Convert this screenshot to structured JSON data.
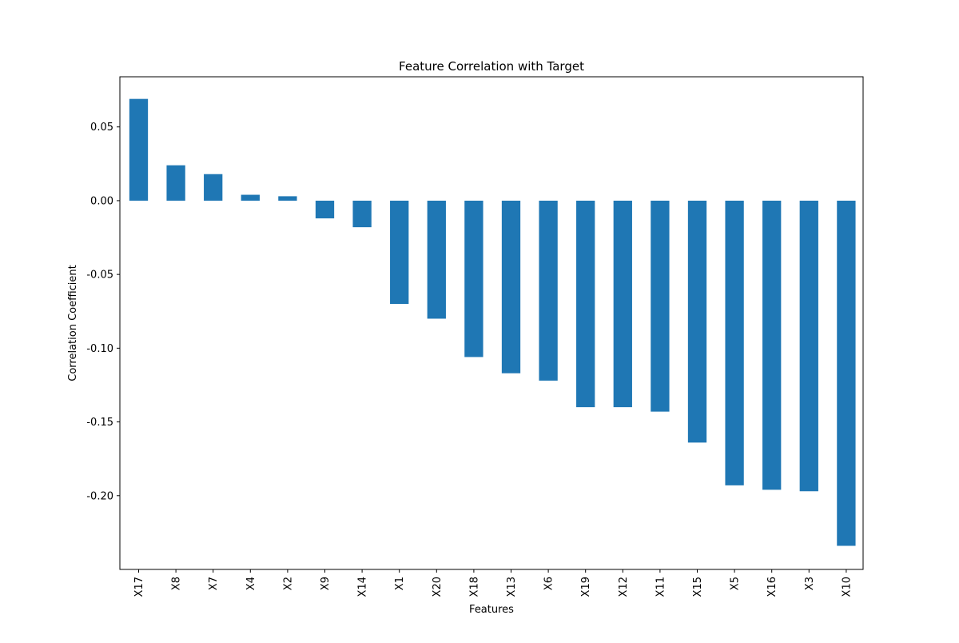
{
  "chart_data": {
    "type": "bar",
    "title": "Feature Correlation with Target",
    "xlabel": "Features",
    "ylabel": "Correlation Coefficient",
    "categories": [
      "X17",
      "X8",
      "X7",
      "X4",
      "X2",
      "X9",
      "X14",
      "X1",
      "X20",
      "X18",
      "X13",
      "X6",
      "X19",
      "X12",
      "X11",
      "X15",
      "X5",
      "X16",
      "X3",
      "X10"
    ],
    "values": [
      0.069,
      0.024,
      0.018,
      0.004,
      0.003,
      -0.012,
      -0.018,
      -0.07,
      -0.08,
      -0.106,
      -0.117,
      -0.122,
      -0.14,
      -0.14,
      -0.143,
      -0.164,
      -0.193,
      -0.196,
      -0.197,
      -0.234
    ],
    "ylim": [
      -0.25,
      0.084
    ],
    "yticks": [
      0.05,
      0.0,
      -0.05,
      -0.1,
      -0.15,
      -0.2
    ],
    "ytick_labels": [
      "0.05",
      "0.00",
      "-0.05",
      "-0.10",
      "-0.15",
      "-0.20"
    ],
    "bar_color": "#1f77b4",
    "grid": false,
    "legend": "none"
  }
}
